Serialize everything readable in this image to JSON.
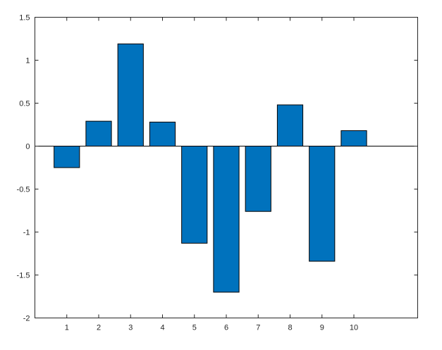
{
  "figure": {
    "background": "#ffffff"
  },
  "chart_data": {
    "type": "bar",
    "title": "",
    "xlabel": "",
    "ylabel": "",
    "categories": [
      1,
      2,
      3,
      4,
      5,
      6,
      7,
      8,
      9,
      10
    ],
    "values": [
      -0.25,
      0.29,
      1.19,
      0.28,
      -1.13,
      -1.7,
      -0.76,
      0.48,
      -1.34,
      0.18
    ],
    "xlim": [
      0,
      12
    ],
    "ylim": [
      -2,
      1.5
    ],
    "x_ticks": [
      1,
      2,
      3,
      4,
      5,
      6,
      7,
      8,
      9,
      10
    ],
    "x_tick_labels": [
      "1",
      "2",
      "3",
      "4",
      "5",
      "6",
      "7",
      "8",
      "9",
      "10"
    ],
    "y_ticks": [
      -2,
      -1.5,
      -1,
      -0.5,
      0,
      0.5,
      1,
      1.5
    ],
    "y_tick_labels": [
      "-2",
      "-1.5",
      "-1",
      "-0.5",
      "0",
      "0.5",
      "1",
      "1.5"
    ],
    "bar_width": 0.8,
    "baseline_value": 0,
    "grid": false,
    "box": true,
    "tick_dir": "in",
    "legend": null,
    "colors": {
      "bar_fill": "#0072BD",
      "bar_edge": "#000000",
      "axis": "#262626",
      "baseline": "#000000",
      "tick_label": "#262626",
      "background": "#ffffff"
    }
  }
}
